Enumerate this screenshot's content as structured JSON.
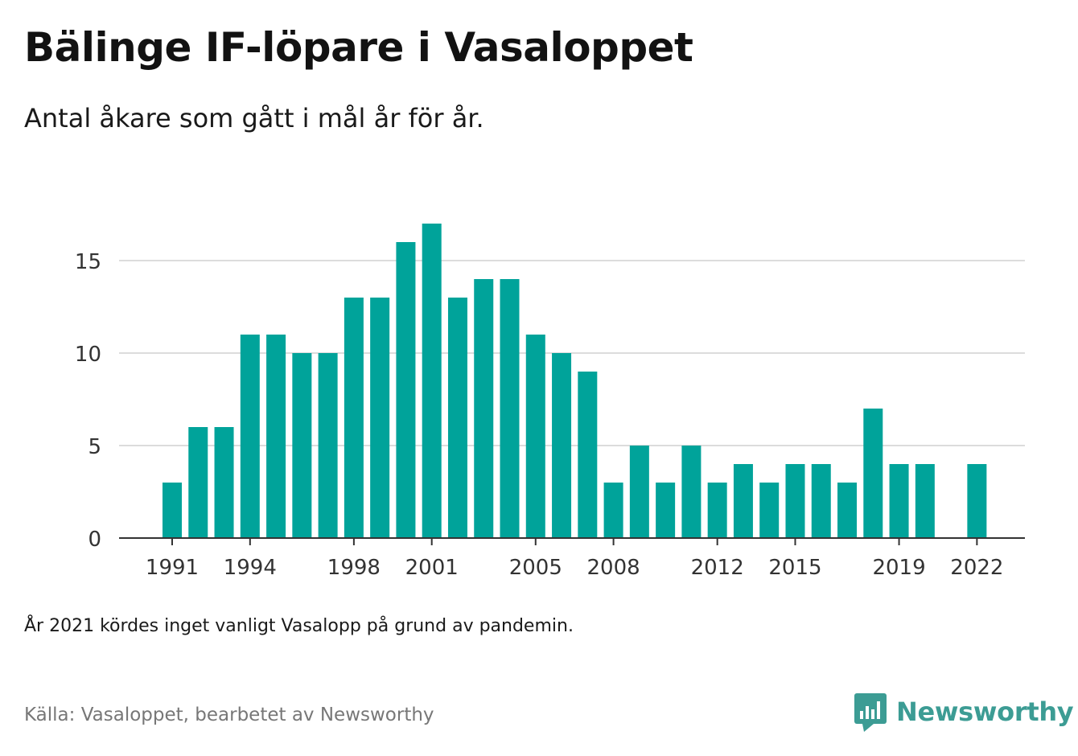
{
  "title": "Bälinge IF-löpare i Vasaloppet",
  "subtitle": "Antal åkare som gått i mål år för år.",
  "note": "År 2021 kördes inget vanligt Vasalopp på grund av pandemin.",
  "source": "Källa: Vasaloppet, bearbetet av Newsworthy",
  "brand": {
    "name": "Newsworthy",
    "icon": "newsworthy-logo-icon",
    "color": "#3c9c94"
  },
  "chart_data": {
    "type": "bar",
    "x": [
      1991,
      1992,
      1993,
      1994,
      1995,
      1996,
      1997,
      1998,
      1999,
      2000,
      2001,
      2002,
      2003,
      2004,
      2005,
      2006,
      2007,
      2008,
      2009,
      2010,
      2011,
      2012,
      2013,
      2014,
      2015,
      2016,
      2017,
      2018,
      2019,
      2020,
      2021,
      2022
    ],
    "values": [
      3,
      6,
      6,
      11,
      11,
      10,
      10,
      13,
      13,
      16,
      17,
      13,
      14,
      14,
      11,
      10,
      9,
      3,
      5,
      3,
      5,
      3,
      4,
      3,
      4,
      4,
      3,
      7,
      4,
      4,
      null,
      4
    ],
    "x_tick_labels": [
      "1991",
      "1994",
      "1998",
      "2001",
      "2005",
      "2008",
      "2012",
      "2015",
      "2019",
      "2022"
    ],
    "y_ticks": [
      0,
      5,
      10,
      15
    ],
    "ylim": [
      0,
      17
    ],
    "grid": true,
    "bar_color": "#00a39a",
    "xlabel": "",
    "ylabel": ""
  }
}
